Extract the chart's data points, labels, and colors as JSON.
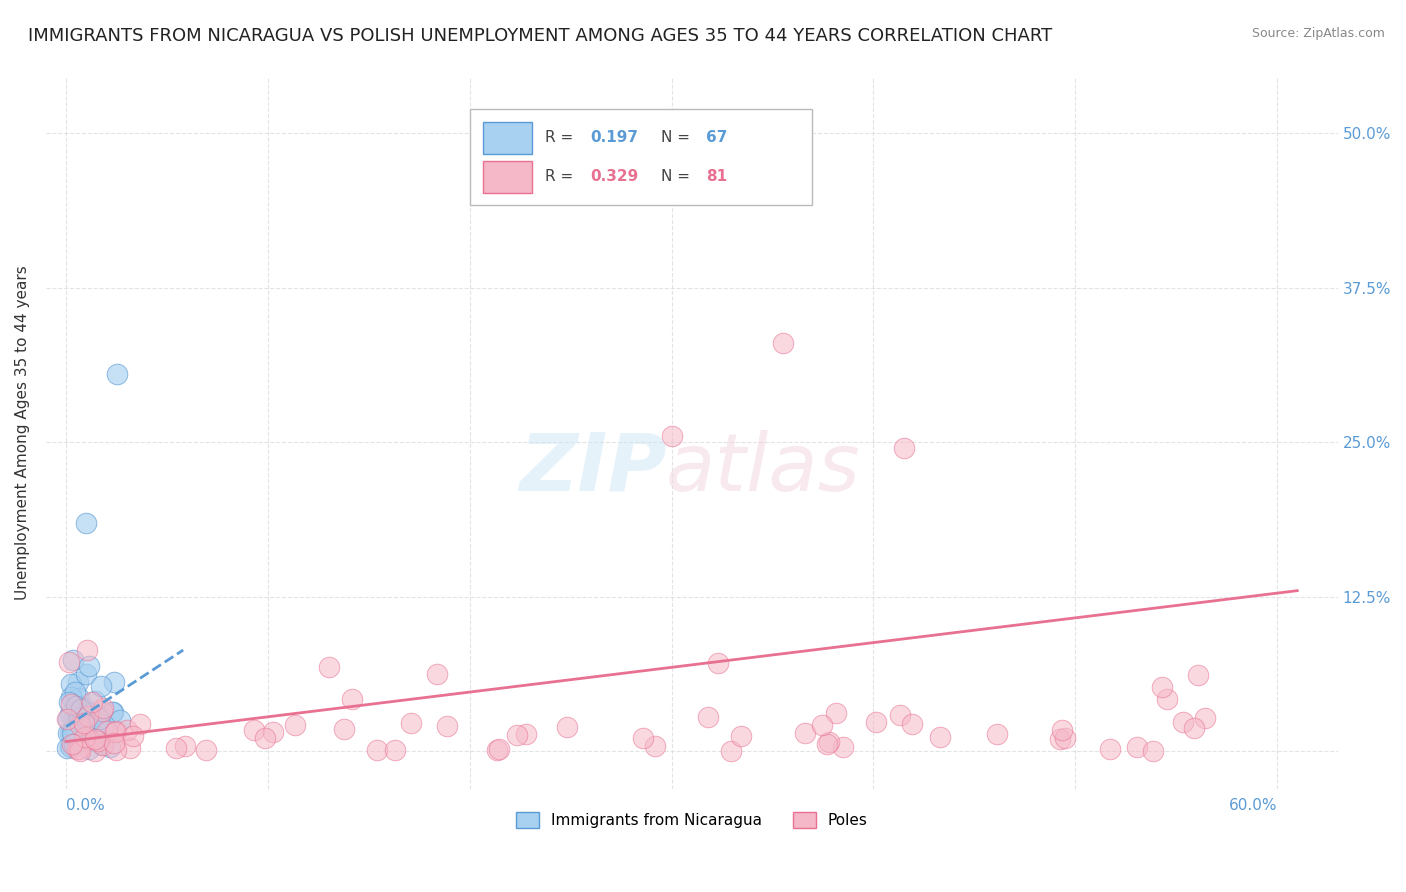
{
  "title": "IMMIGRANTS FROM NICARAGUA VS POLISH UNEMPLOYMENT AMONG AGES 35 TO 44 YEARS CORRELATION CHART",
  "source": "Source: ZipAtlas.com",
  "ylabel": "Unemployment Among Ages 35 to 44 years",
  "legend_entries": [
    {
      "label": "Immigrants from Nicaragua",
      "R": 0.197,
      "N": 67,
      "color": "#A8D0F0",
      "edge_color": "#5B9BD5"
    },
    {
      "label": "Poles",
      "R": 0.329,
      "N": 81,
      "color": "#F5B8C8",
      "edge_color": "#E87090"
    }
  ],
  "yticks": [
    0.0,
    0.125,
    0.25,
    0.375,
    0.5
  ],
  "ytick_labels": [
    "",
    "12.5%",
    "25.0%",
    "37.5%",
    "50.0%"
  ],
  "xlim": [
    -0.01,
    0.63
  ],
  "ylim": [
    -0.03,
    0.545
  ],
  "background_color": "#FFFFFF",
  "blue_trend_x": [
    0.0,
    0.058
  ],
  "blue_trend_y": [
    0.02,
    0.082
  ],
  "pink_trend_x": [
    0.0,
    0.61
  ],
  "pink_trend_y": [
    0.008,
    0.13
  ],
  "grid_color": "#DDDDDD",
  "title_fontsize": 13,
  "axis_label_fontsize": 11,
  "tick_fontsize": 11,
  "R_color_blue": "#5B9BD5",
  "N_color_blue": "#5B9BD5",
  "R_color_pink": "#E87090",
  "N_color_pink": "#E87090"
}
